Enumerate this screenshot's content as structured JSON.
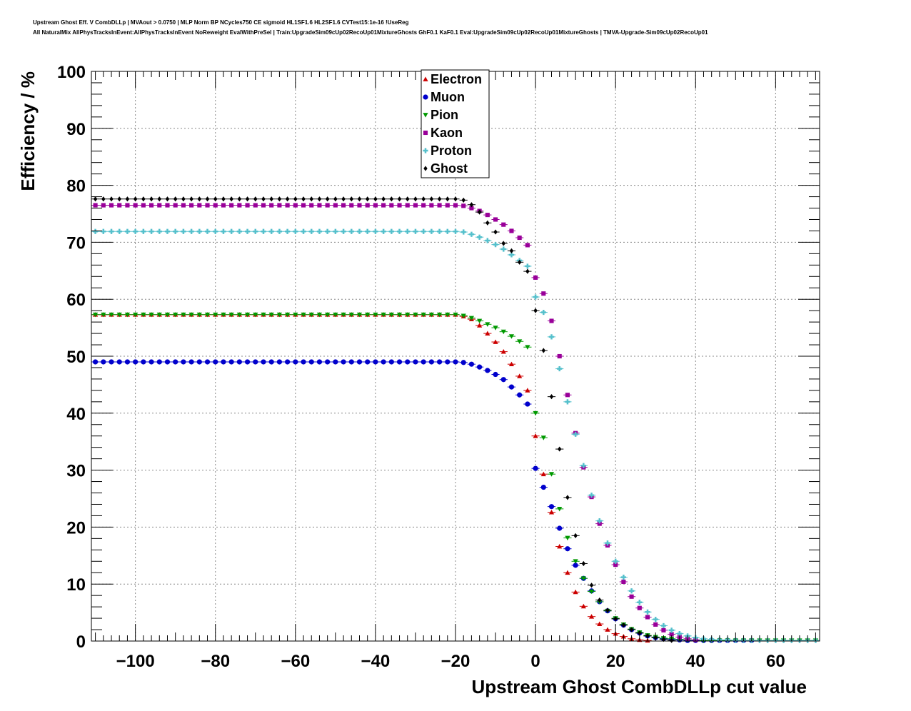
{
  "header": {
    "title_line1": "Upstream Ghost Eff. V CombDLLp | MVAout > 0.0750 | MLP Norm BP NCycles750 CE sigmoid HL1SF1.6 HL2SF1.6 CVTest15:1e-16 !UseReg",
    "title_line2": "All NaturalMix AllPhysTracksInEvent:AllPhysTracksInEvent NoReweight EvalWithPreSel | Train:UpgradeSim09cUp02RecoUp01MixtureGhosts GhF0.1 KaF0.1 Eval:UpgradeSim09cUp02RecoUp01MixtureGhosts | TMVA-Upgrade-Sim09cUp02RecoUp01"
  },
  "chart_data": {
    "type": "scatter",
    "title": "",
    "xlabel": "Upstream Ghost CombDLLp cut value",
    "ylabel": "Efficiency / %",
    "xlim": [
      -111,
      71
    ],
    "ylim": [
      0,
      100
    ],
    "x_ticks": [
      -100,
      -80,
      -60,
      -40,
      -20,
      0,
      20,
      40,
      60
    ],
    "x_tick_labels": [
      "−100",
      "−80",
      "−60",
      "−40",
      "−20",
      "0",
      "20",
      "40",
      "60"
    ],
    "y_ticks": [
      0,
      10,
      20,
      30,
      40,
      50,
      60,
      70,
      80,
      90,
      100
    ],
    "y_tick_labels": [
      "0",
      "10",
      "20",
      "30",
      "40",
      "50",
      "60",
      "70",
      "80",
      "90",
      "100"
    ],
    "grid": true,
    "legend_position": "top-center",
    "x_step": 2,
    "series": [
      {
        "name": "Electron",
        "color": "#cc0000",
        "marker": "triangle-up",
        "x_start": -110,
        "plateau_value": 57.3,
        "x": [
          -18,
          -16,
          -14,
          -12,
          -10,
          -8,
          -6,
          -4,
          -2,
          0,
          2,
          4,
          6,
          8,
          10,
          12,
          14,
          16,
          18,
          20,
          22,
          24,
          26,
          28
        ],
        "values": [
          57.0,
          56.5,
          55.4,
          54.0,
          52.5,
          50.8,
          48.6,
          46.5,
          44.0,
          36.0,
          29.3,
          22.6,
          16.6,
          12.0,
          8.6,
          6.1,
          4.3,
          3.0,
          2.0,
          1.3,
          0.8,
          0.4,
          0.2,
          0.1
        ]
      },
      {
        "name": "Muon",
        "color": "#0000cc",
        "marker": "circle",
        "x_start": -110,
        "plateau_value": 49.0,
        "x": [
          -18,
          -16,
          -14,
          -12,
          -10,
          -8,
          -6,
          -4,
          -2,
          0,
          2,
          4,
          6,
          8,
          10,
          12,
          14,
          16,
          18,
          20,
          22,
          24,
          26,
          28,
          30,
          32,
          34,
          36,
          38,
          40,
          42,
          44,
          46,
          48,
          50,
          52,
          54
        ],
        "values": [
          48.9,
          48.6,
          48.1,
          47.5,
          46.8,
          45.9,
          44.6,
          43.2,
          41.6,
          30.3,
          27.0,
          23.6,
          19.8,
          16.2,
          13.3,
          11.0,
          8.8,
          6.9,
          5.3,
          3.9,
          2.8,
          2.0,
          1.4,
          0.9,
          0.6,
          0.4,
          0.3,
          0.2,
          0.1,
          0.1,
          0.1,
          0.1,
          0.1,
          0.1,
          0.1,
          0.1,
          0.1
        ]
      },
      {
        "name": "Pion",
        "color": "#009900",
        "marker": "triangle-down",
        "x_start": -110,
        "plateau_value": 57.3,
        "x": [
          -18,
          -16,
          -14,
          -12,
          -10,
          -8,
          -6,
          -4,
          -2,
          0,
          2,
          4,
          6,
          8,
          10,
          12,
          14,
          16,
          18,
          20,
          22,
          24,
          26,
          28,
          30,
          32,
          34,
          36,
          38,
          40,
          42,
          44,
          46,
          48,
          50,
          52,
          54,
          56,
          58,
          60,
          62,
          64,
          66,
          68,
          70
        ],
        "values": [
          57.1,
          56.7,
          56.2,
          55.6,
          55.0,
          54.3,
          53.5,
          52.6,
          51.6,
          40.0,
          35.7,
          29.3,
          23.2,
          18.1,
          14.0,
          11.0,
          8.7,
          6.9,
          5.3,
          4.0,
          2.9,
          2.1,
          1.5,
          1.0,
          0.7,
          0.5,
          0.4,
          0.3,
          0.2,
          0.2,
          0.1,
          0.1,
          0.1,
          0.1,
          0.1,
          0.1,
          0.1,
          0.1,
          0.1,
          0.1,
          0.1,
          0.1,
          0.1,
          0.1,
          0.1
        ]
      },
      {
        "name": "Kaon",
        "color": "#990099",
        "marker": "square",
        "x_start": -110,
        "plateau_value": 76.5,
        "x": [
          -18,
          -16,
          -14,
          -12,
          -10,
          -8,
          -6,
          -4,
          -2,
          0,
          2,
          4,
          6,
          8,
          10,
          12,
          14,
          16,
          18,
          20,
          22,
          24,
          26,
          28,
          30,
          32,
          34,
          36,
          38,
          40
        ],
        "values": [
          76.4,
          76.0,
          75.5,
          74.8,
          74.0,
          73.1,
          72.0,
          70.8,
          69.5,
          63.8,
          61.0,
          56.2,
          50.0,
          43.2,
          36.5,
          30.5,
          25.3,
          20.6,
          16.8,
          13.4,
          10.4,
          7.8,
          5.8,
          4.2,
          2.9,
          1.9,
          1.2,
          0.7,
          0.4,
          0.2
        ]
      },
      {
        "name": "Proton",
        "color": "#55c0cc",
        "marker": "cross",
        "x_start": -110,
        "plateau_value": 71.9,
        "x": [
          -18,
          -16,
          -14,
          -12,
          -10,
          -8,
          -6,
          -4,
          -2,
          0,
          2,
          4,
          6,
          8,
          10,
          12,
          14,
          16,
          18,
          20,
          22,
          24,
          26,
          28,
          30,
          32,
          34,
          36,
          38,
          40,
          42,
          44,
          46,
          48,
          50,
          52,
          54,
          56,
          58,
          60,
          62,
          64,
          66,
          68,
          70
        ],
        "values": [
          71.8,
          71.4,
          70.9,
          70.3,
          69.6,
          68.8,
          67.8,
          66.8,
          65.8,
          60.4,
          57.7,
          53.4,
          47.8,
          42.0,
          36.3,
          30.8,
          25.6,
          21.1,
          17.2,
          14.0,
          11.2,
          8.8,
          6.8,
          5.1,
          3.8,
          2.7,
          1.9,
          1.3,
          0.9,
          0.6,
          0.4,
          0.3,
          0.2,
          0.2,
          0.1,
          0.1,
          0.1,
          0.1,
          0.1,
          0.1,
          0.1,
          0.1,
          0.1,
          0.1,
          0.1
        ]
      },
      {
        "name": "Ghost",
        "color": "#000000",
        "marker": "diamond",
        "x_start": -110,
        "plateau_value": 77.6,
        "x": [
          -18,
          -16,
          -14,
          -12,
          -10,
          -8,
          -6,
          -4,
          -2,
          0,
          2,
          4,
          6,
          8,
          10,
          12,
          14,
          16,
          18,
          20,
          22,
          24,
          26,
          28,
          30,
          32,
          34
        ],
        "values": [
          77.4,
          76.6,
          75.3,
          73.4,
          71.8,
          69.8,
          68.5,
          66.5,
          64.9,
          58.0,
          51.0,
          42.9,
          33.7,
          25.2,
          18.5,
          13.6,
          9.8,
          7.2,
          5.4,
          3.9,
          2.8,
          2.0,
          1.4,
          0.9,
          0.6,
          0.3,
          0.1
        ]
      }
    ]
  }
}
